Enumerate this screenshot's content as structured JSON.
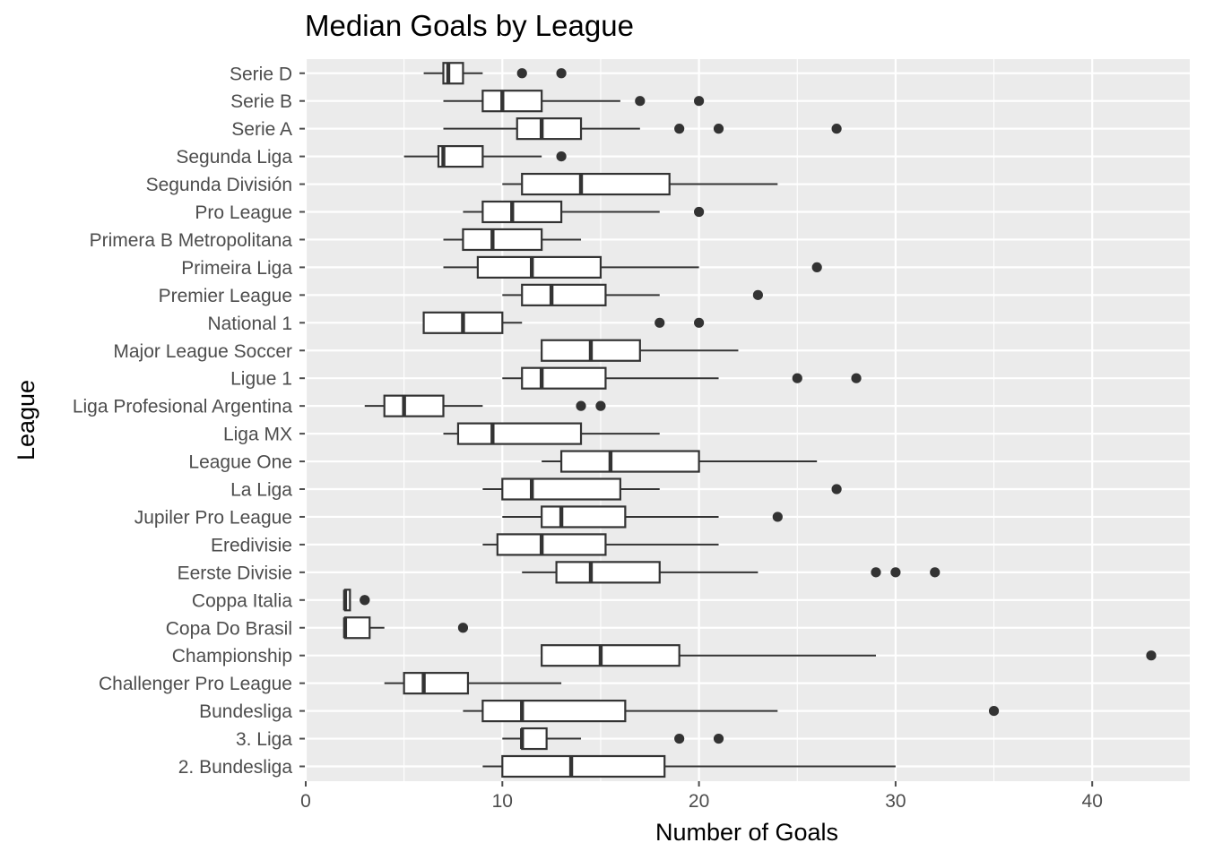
{
  "chart_data": {
    "type": "boxplot",
    "title": "Median Goals by League",
    "xlabel": "Number of Goals",
    "ylabel": "League",
    "xlim": [
      0,
      45
    ],
    "x_ticks": [
      0,
      10,
      20,
      30,
      40
    ],
    "grid": true,
    "orientation": "horizontal",
    "colors": {
      "panel": "#ebebeb",
      "grid": "#ffffff",
      "box_fill": "#ffffff",
      "box_stroke": "#333333",
      "outlier": "#333333",
      "tick": "#4d4d4d"
    },
    "categories": [
      "2. Bundesliga",
      "3. Liga",
      "Bundesliga",
      "Challenger Pro League",
      "Championship",
      "Copa Do Brasil",
      "Coppa Italia",
      "Eerste Divisie",
      "Eredivisie",
      "Jupiler Pro League",
      "La Liga",
      "League One",
      "Liga MX",
      "Liga Profesional Argentina",
      "Ligue 1",
      "Major League Soccer",
      "National 1",
      "Premier League",
      "Primeira Liga",
      "Primera B Metropolitana",
      "Pro League",
      "Segunda División",
      "Segunda Liga",
      "Serie A",
      "Serie B",
      "Serie D"
    ],
    "boxes": [
      {
        "league": "2. Bundesliga",
        "whisker_low": 9,
        "q1": 10,
        "median": 13.5,
        "q3": 18.25,
        "whisker_high": 30,
        "outliers": []
      },
      {
        "league": "3. Liga",
        "whisker_low": 10,
        "q1": 11,
        "median": 11,
        "q3": 12.25,
        "whisker_high": 14,
        "outliers": [
          19,
          21
        ]
      },
      {
        "league": "Bundesliga",
        "whisker_low": 8,
        "q1": 9,
        "median": 11,
        "q3": 16.25,
        "whisker_high": 24,
        "outliers": [
          35
        ]
      },
      {
        "league": "Challenger Pro League",
        "whisker_low": 4,
        "q1": 5,
        "median": 6,
        "q3": 8.25,
        "whisker_high": 13,
        "outliers": []
      },
      {
        "league": "Championship",
        "whisker_low": 12,
        "q1": 12,
        "median": 15,
        "q3": 19,
        "whisker_high": 29,
        "outliers": [
          43
        ]
      },
      {
        "league": "Copa Do Brasil",
        "whisker_low": 2,
        "q1": 2,
        "median": 2,
        "q3": 3.25,
        "whisker_high": 4,
        "outliers": [
          8
        ]
      },
      {
        "league": "Coppa Italia",
        "whisker_low": 2,
        "q1": 2,
        "median": 2,
        "q3": 2.25,
        "whisker_high": 2.25,
        "outliers": [
          3,
          3
        ]
      },
      {
        "league": "Eerste Divisie",
        "whisker_low": 11,
        "q1": 12.75,
        "median": 14.5,
        "q3": 18,
        "whisker_high": 23,
        "outliers": [
          29,
          30,
          32
        ]
      },
      {
        "league": "Eredivisie",
        "whisker_low": 9,
        "q1": 9.75,
        "median": 12,
        "q3": 15.25,
        "whisker_high": 21,
        "outliers": []
      },
      {
        "league": "Jupiler Pro League",
        "whisker_low": 10,
        "q1": 12,
        "median": 13,
        "q3": 16.25,
        "whisker_high": 21,
        "outliers": [
          24
        ]
      },
      {
        "league": "La Liga",
        "whisker_low": 9,
        "q1": 10,
        "median": 11.5,
        "q3": 16,
        "whisker_high": 18,
        "outliers": [
          27
        ]
      },
      {
        "league": "League One",
        "whisker_low": 12,
        "q1": 13,
        "median": 15.5,
        "q3": 20,
        "whisker_high": 26,
        "outliers": []
      },
      {
        "league": "Liga MX",
        "whisker_low": 7,
        "q1": 7.75,
        "median": 9.5,
        "q3": 14,
        "whisker_high": 18,
        "outliers": []
      },
      {
        "league": "Liga Profesional Argentina",
        "whisker_low": 3,
        "q1": 4,
        "median": 5,
        "q3": 7,
        "whisker_high": 9,
        "outliers": [
          14,
          15
        ]
      },
      {
        "league": "Ligue 1",
        "whisker_low": 10,
        "q1": 11,
        "median": 12,
        "q3": 15.25,
        "whisker_high": 21,
        "outliers": [
          25,
          28
        ]
      },
      {
        "league": "Major League Soccer",
        "whisker_low": 12,
        "q1": 12,
        "median": 14.5,
        "q3": 17,
        "whisker_high": 22,
        "outliers": []
      },
      {
        "league": "National 1",
        "whisker_low": 6,
        "q1": 6,
        "median": 8,
        "q3": 10,
        "whisker_high": 11,
        "outliers": [
          18,
          20
        ]
      },
      {
        "league": "Premier League",
        "whisker_low": 10,
        "q1": 11,
        "median": 12.5,
        "q3": 15.25,
        "whisker_high": 18,
        "outliers": [
          23
        ]
      },
      {
        "league": "Primeira Liga",
        "whisker_low": 7,
        "q1": 8.75,
        "median": 11.5,
        "q3": 15,
        "whisker_high": 20,
        "outliers": [
          26
        ]
      },
      {
        "league": "Primera B Metropolitana",
        "whisker_low": 7,
        "q1": 8,
        "median": 9.5,
        "q3": 12,
        "whisker_high": 14,
        "outliers": []
      },
      {
        "league": "Pro League",
        "whisker_low": 8,
        "q1": 9,
        "median": 10.5,
        "q3": 13,
        "whisker_high": 18,
        "outliers": [
          20
        ]
      },
      {
        "league": "Segunda División",
        "whisker_low": 10,
        "q1": 11,
        "median": 14,
        "q3": 18.5,
        "whisker_high": 24,
        "outliers": []
      },
      {
        "league": "Segunda Liga",
        "whisker_low": 5,
        "q1": 6.75,
        "median": 7,
        "q3": 9,
        "whisker_high": 12,
        "outliers": [
          13
        ]
      },
      {
        "league": "Serie A",
        "whisker_low": 7,
        "q1": 10.75,
        "median": 12,
        "q3": 14,
        "whisker_high": 17,
        "outliers": [
          19,
          21,
          27
        ]
      },
      {
        "league": "Serie B",
        "whisker_low": 7,
        "q1": 9,
        "median": 10,
        "q3": 12,
        "whisker_high": 16,
        "outliers": [
          17,
          20
        ]
      },
      {
        "league": "Serie D",
        "whisker_low": 6,
        "q1": 7,
        "median": 7.25,
        "q3": 8,
        "whisker_high": 9,
        "outliers": [
          11,
          13
        ]
      }
    ]
  }
}
